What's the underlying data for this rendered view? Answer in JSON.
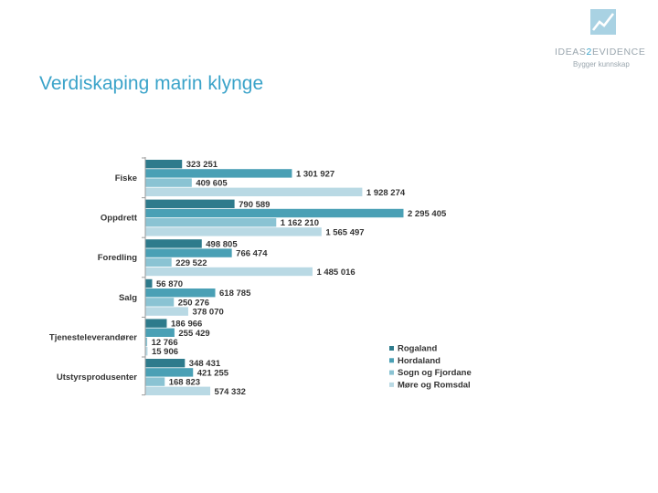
{
  "slide": {
    "title": "Verdiskaping marin klynge"
  },
  "logo": {
    "name_part1": "IDEAS",
    "name_part2": "2",
    "name_part3": "EVIDENCE",
    "tagline": "Bygger kunnskap"
  },
  "colors": {
    "rogaland": "#2e7b8c",
    "hordaland": "#4aa0b5",
    "sogn": "#8ac3d3",
    "more": "#b9d9e4",
    "title": "#3aa3c9"
  },
  "chart_data": {
    "type": "bar",
    "orientation": "horizontal",
    "title": "",
    "xlabel": "",
    "ylabel": "",
    "xlim": [
      0,
      2500000
    ],
    "grid": false,
    "legend_position": "bottom-right",
    "categories": [
      "Fiske",
      "Oppdrett",
      "Foredling",
      "Salg",
      "Tjenesteleverandører",
      "Utstyrsprodusenter"
    ],
    "series": [
      {
        "name": "Rogaland",
        "values": [
          323251,
          790589,
          498805,
          56870,
          186966,
          348431
        ],
        "labels": [
          "323 251",
          "790 589",
          "498 805",
          "56 870",
          "186 966",
          "348 431"
        ]
      },
      {
        "name": "Hordaland",
        "values": [
          1301927,
          2295405,
          766474,
          618785,
          255429,
          421255
        ],
        "labels": [
          "1 301 927",
          "2 295 405",
          "766 474",
          "618 785",
          "255 429",
          "421 255"
        ]
      },
      {
        "name": "Sogn og Fjordane",
        "values": [
          409605,
          1162210,
          229522,
          250276,
          12766,
          168823
        ],
        "labels": [
          "409 605",
          "1 162 210",
          "229 522",
          "250 276",
          "12 766",
          "168 823"
        ]
      },
      {
        "name": "Møre og Romsdal",
        "values": [
          1928274,
          1565497,
          1485016,
          378070,
          15906,
          574332
        ],
        "labels": [
          "1 928 274",
          "1 565 497",
          "1 485 016",
          "378 070",
          "15 906",
          "574 332"
        ]
      }
    ]
  }
}
